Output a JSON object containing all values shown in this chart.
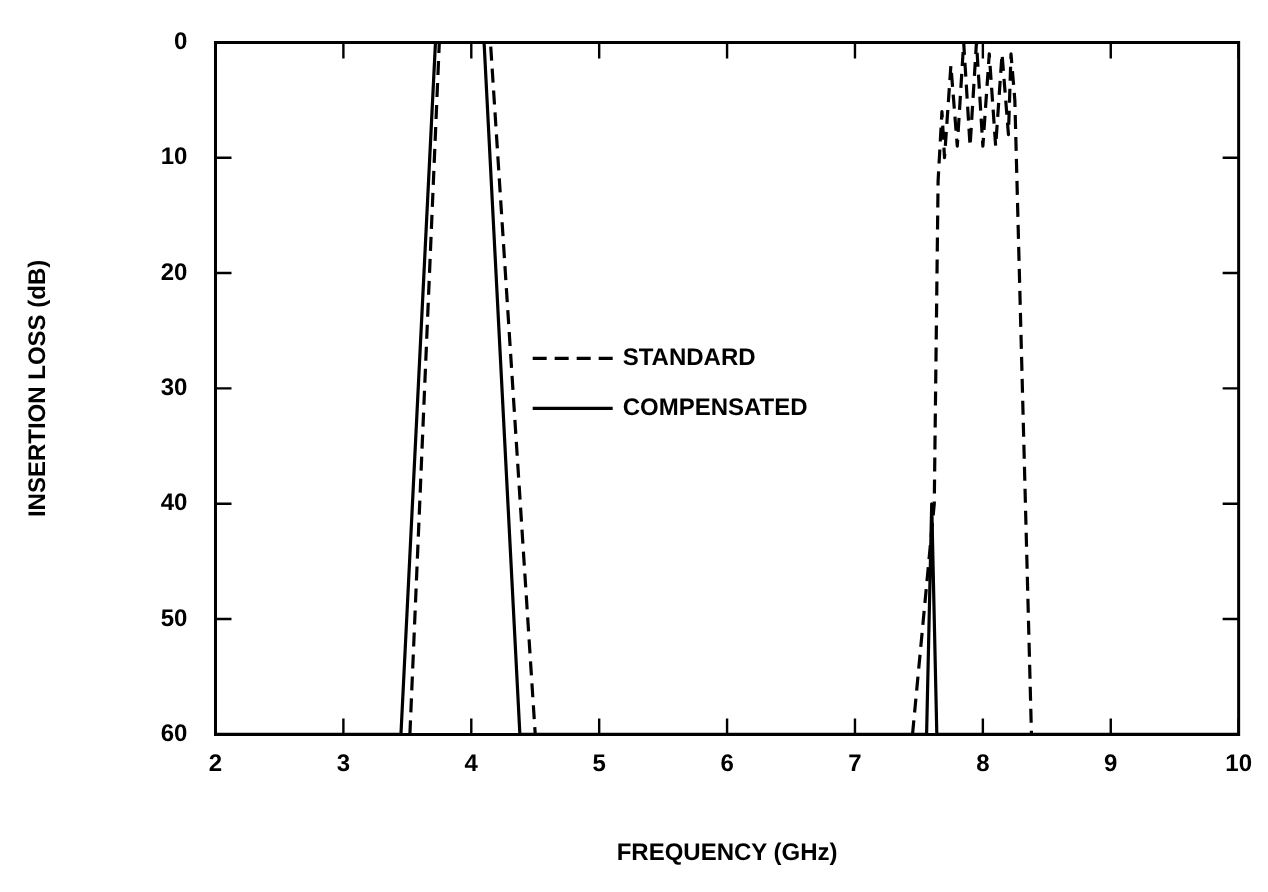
{
  "chart_data": {
    "type": "line",
    "xlabel": "FREQUENCY (GHz)",
    "ylabel": "INSERTION LOSS (dB)",
    "xlim": [
      2,
      10
    ],
    "xticks": [
      2,
      3,
      4,
      5,
      6,
      7,
      8,
      9,
      10
    ],
    "ylim": [
      60,
      0
    ],
    "yticks": [
      0,
      10,
      20,
      30,
      40,
      50,
      60
    ],
    "grid": false,
    "legend": "center",
    "marker": "none",
    "series": [
      {
        "name": "STANDARD",
        "color": "#000000",
        "line_style": "dashed",
        "x": [
          3.52,
          3.75,
          4.15,
          4.5,
          null,
          7.45,
          7.62,
          7.65,
          7.68,
          7.7,
          7.75,
          7.8,
          7.85,
          7.9,
          7.95,
          8.0,
          8.05,
          8.1,
          8.15,
          8.2,
          8.22,
          8.25,
          8.38
        ],
        "values": [
          60,
          0,
          0,
          60,
          null,
          60,
          40,
          12,
          6,
          10,
          2,
          9,
          0,
          9,
          0,
          9,
          1,
          9,
          1,
          8,
          1,
          5,
          60
        ]
      },
      {
        "name": "COMPENSATED",
        "color": "#000000",
        "line_style": "solid",
        "x": [
          2,
          3.45,
          3.72,
          4.1,
          4.38,
          7.56,
          7.6,
          7.64,
          10
        ],
        "values": [
          60,
          60,
          0,
          0,
          60,
          60,
          40,
          60,
          60
        ]
      }
    ]
  }
}
